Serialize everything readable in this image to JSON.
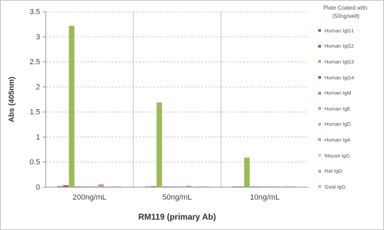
{
  "chart_data": {
    "type": "bar",
    "ylabel": "Abs (405nm)",
    "xlabel": "RM119 (primary Ab)",
    "ylim": [
      0,
      3.5
    ],
    "yticks": [
      "0",
      "0.5",
      "1",
      "1.5",
      "2",
      "2.5",
      "3",
      "3.5"
    ],
    "grid": "horizontal dashed",
    "legend_title_lines": [
      "Plate Coated with:",
      "(50ng/well)"
    ],
    "legend_position": "right",
    "categories": [
      "200ng/mL",
      "50ng/mL",
      "10ng/mL"
    ],
    "series": [
      {
        "name": "Human IgG1",
        "color": "#4f81bd",
        "values": [
          0.02,
          0.01,
          0.01
        ]
      },
      {
        "name": "Human IgG2",
        "color": "#c0504d",
        "values": [
          0.04,
          0.02,
          0.01
        ]
      },
      {
        "name": "Human IgG3",
        "color": "#9bbb59",
        "values": [
          3.22,
          1.69,
          0.59
        ]
      },
      {
        "name": "Human IgG4",
        "color": "#8064a2",
        "values": [
          0.01,
          0.01,
          0.01
        ]
      },
      {
        "name": "Human IgM",
        "color": "#4bacc6",
        "values": [
          0.01,
          0.01,
          0.01
        ]
      },
      {
        "name": "Human IgE",
        "color": "#f79646",
        "values": [
          0.01,
          0.01,
          0.01
        ]
      },
      {
        "name": "Human IgD",
        "color": "#95b3d7",
        "values": [
          0.01,
          0.01,
          0.01
        ]
      },
      {
        "name": "Human IgA",
        "color": "#d99694",
        "values": [
          0.06,
          0.03,
          0.01
        ]
      },
      {
        "name": "Mouse IgG",
        "color": "#c3d69b",
        "values": [
          0.01,
          0.01,
          0.01
        ]
      },
      {
        "name": "Rat IgG",
        "color": "#b2a1c7",
        "values": [
          0.01,
          0.01,
          0.01
        ]
      },
      {
        "name": "Goat IgG",
        "color": "#93cddd",
        "values": [
          0.01,
          0.01,
          0.01
        ]
      }
    ]
  }
}
